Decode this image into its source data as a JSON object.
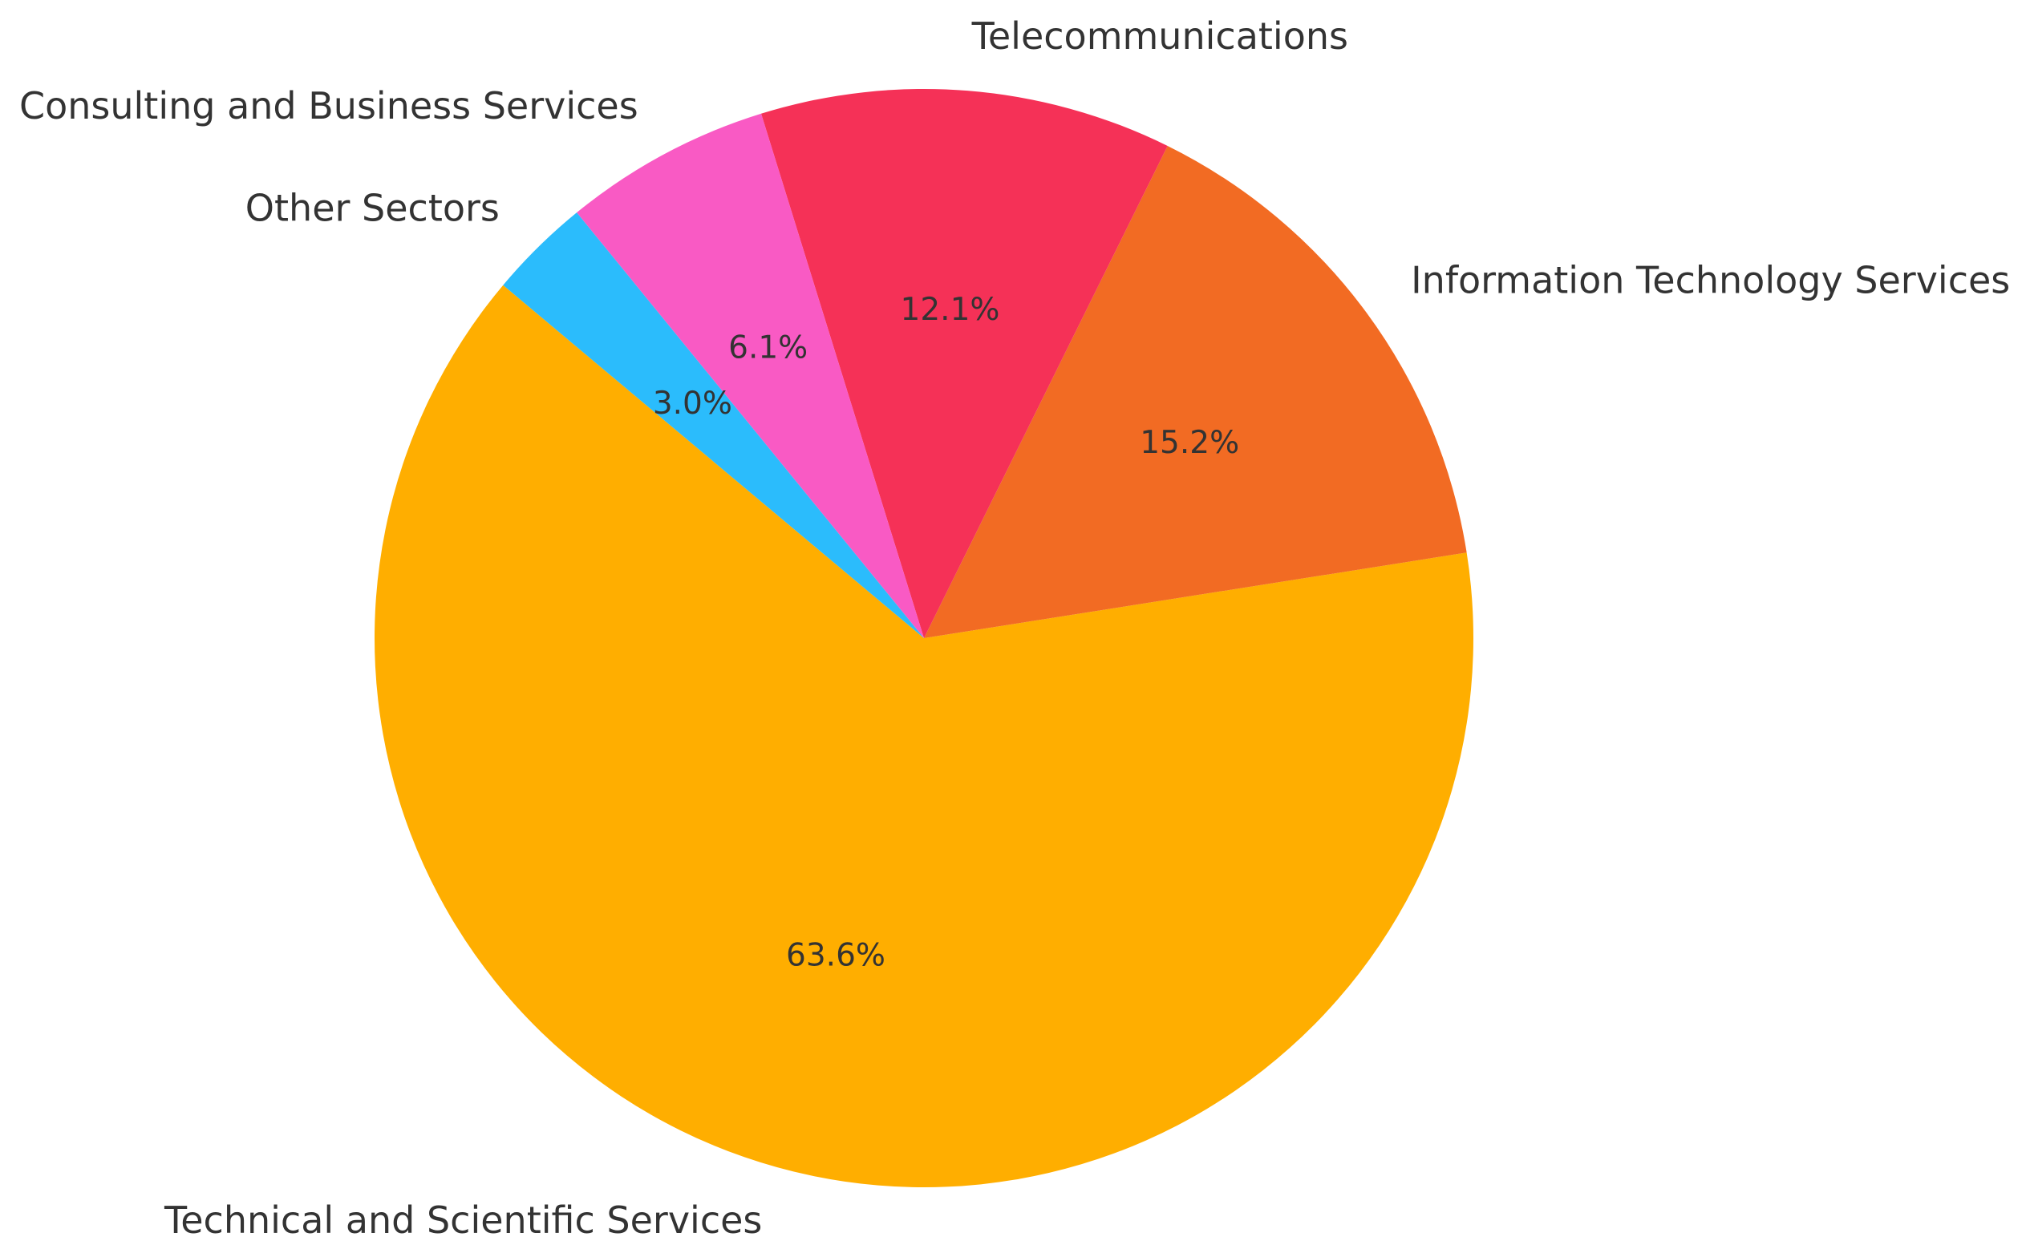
{
  "chart_data": {
    "type": "pie",
    "title": "",
    "start_angle_deg": 140,
    "direction": "counterclockwise",
    "slices": [
      {
        "label": "Technical and Scientific Services",
        "value": 63.6,
        "pct_label": "63.6%",
        "color": "#FFAE00"
      },
      {
        "label": "Information Technology Services",
        "value": 15.2,
        "pct_label": "15.2%",
        "color": "#F26B23"
      },
      {
        "label": "Telecommunications",
        "value": 12.1,
        "pct_label": "12.1%",
        "color": "#F53157"
      },
      {
        "label": "Consulting and Business Services",
        "value": 6.1,
        "pct_label": "6.1%",
        "color": "#F95AC4"
      },
      {
        "label": "Other Sectors",
        "value": 3.0,
        "pct_label": "3.0%",
        "color": "#2BBCFC"
      }
    ]
  }
}
